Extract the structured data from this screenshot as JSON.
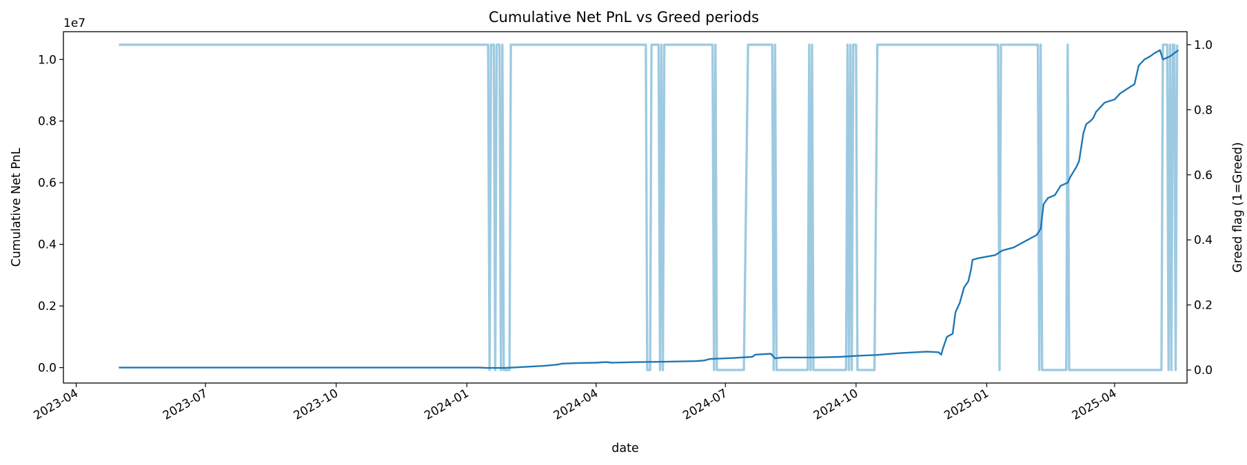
{
  "chart_data": {
    "type": "line",
    "title": "Cumulative Net PnL vs Greed periods",
    "xlabel": "date",
    "ylabel_left": "Cumulative Net PnL",
    "ylabel_right": "Greed flag (1=Greed)",
    "left_offset_label": "1e7",
    "x_range": [
      "2023-03-23",
      "2025-05-22"
    ],
    "x_ticks": [
      "2023-04",
      "2023-07",
      "2023-10",
      "2024-01",
      "2024-04",
      "2024-07",
      "2024-10",
      "2025-01",
      "2025-04"
    ],
    "x_tick_dates": [
      "2023-04-01",
      "2023-07-01",
      "2023-10-01",
      "2024-01-01",
      "2024-04-01",
      "2024-07-01",
      "2024-10-01",
      "2025-01-01",
      "2025-04-01"
    ],
    "ylim_left": [
      -0.05,
      1.09
    ],
    "yticks_left": [
      0.0,
      0.2,
      0.4,
      0.6,
      0.8,
      1.0
    ],
    "ytick_labels_left": [
      "0.0",
      "0.2",
      "0.4",
      "0.6",
      "0.8",
      "1.0"
    ],
    "ylim_right": [
      -0.04,
      1.04
    ],
    "yticks_right": [
      0.0,
      0.2,
      0.4,
      0.6,
      0.8,
      1.0
    ],
    "ytick_labels_right": [
      "0.0",
      "0.2",
      "0.4",
      "0.6",
      "0.8",
      "1.0"
    ],
    "grid": false,
    "series": [
      {
        "axis": "left",
        "unit": "1e7",
        "color": "#1f77b4",
        "points": [
          [
            "2023-05-01",
            0.0
          ],
          [
            "2023-09-01",
            0.0
          ],
          [
            "2024-01-10",
            0.0
          ],
          [
            "2024-01-15",
            -0.001
          ],
          [
            "2024-01-28",
            -0.001
          ],
          [
            "2024-02-10",
            0.002
          ],
          [
            "2024-02-25",
            0.006
          ],
          [
            "2024-03-05",
            0.01
          ],
          [
            "2024-03-08",
            0.013
          ],
          [
            "2024-03-20",
            0.015
          ],
          [
            "2024-04-01",
            0.016
          ],
          [
            "2024-04-08",
            0.018
          ],
          [
            "2024-04-12",
            0.016
          ],
          [
            "2024-05-01",
            0.018
          ],
          [
            "2024-05-20",
            0.019
          ],
          [
            "2024-06-10",
            0.021
          ],
          [
            "2024-06-16",
            0.023
          ],
          [
            "2024-06-20",
            0.028
          ],
          [
            "2024-07-05",
            0.031
          ],
          [
            "2024-07-20",
            0.035
          ],
          [
            "2024-07-22",
            0.042
          ],
          [
            "2024-08-02",
            0.045
          ],
          [
            "2024-08-05",
            0.03
          ],
          [
            "2024-08-10",
            0.033
          ],
          [
            "2024-09-01",
            0.033
          ],
          [
            "2024-09-20",
            0.035
          ],
          [
            "2024-10-01",
            0.038
          ],
          [
            "2024-10-15",
            0.041
          ],
          [
            "2024-11-01",
            0.047
          ],
          [
            "2024-11-20",
            0.052
          ],
          [
            "2024-11-28",
            0.05
          ],
          [
            "2024-11-30",
            0.042
          ],
          [
            "2024-12-01",
            0.06
          ],
          [
            "2024-12-04",
            0.1
          ],
          [
            "2024-12-08",
            0.11
          ],
          [
            "2024-12-10",
            0.18
          ],
          [
            "2024-12-13",
            0.21
          ],
          [
            "2024-12-16",
            0.26
          ],
          [
            "2024-12-19",
            0.28
          ],
          [
            "2024-12-21",
            0.32
          ],
          [
            "2024-12-22",
            0.35
          ],
          [
            "2024-12-26",
            0.355
          ],
          [
            "2025-01-01",
            0.36
          ],
          [
            "2025-01-07",
            0.365
          ],
          [
            "2025-01-12",
            0.38
          ],
          [
            "2025-01-20",
            0.39
          ],
          [
            "2025-01-28",
            0.41
          ],
          [
            "2025-02-05",
            0.43
          ],
          [
            "2025-02-08",
            0.45
          ],
          [
            "2025-02-10",
            0.53
          ],
          [
            "2025-02-13",
            0.55
          ],
          [
            "2025-02-18",
            0.56
          ],
          [
            "2025-02-22",
            0.59
          ],
          [
            "2025-02-27",
            0.6
          ],
          [
            "2025-03-01",
            0.62
          ],
          [
            "2025-03-05",
            0.65
          ],
          [
            "2025-03-07",
            0.67
          ],
          [
            "2025-03-10",
            0.76
          ],
          [
            "2025-03-12",
            0.79
          ],
          [
            "2025-03-15",
            0.8
          ],
          [
            "2025-03-17",
            0.81
          ],
          [
            "2025-03-19",
            0.83
          ],
          [
            "2025-03-25",
            0.86
          ],
          [
            "2025-04-01",
            0.87
          ],
          [
            "2025-04-05",
            0.89
          ],
          [
            "2025-04-15",
            0.92
          ],
          [
            "2025-04-18",
            0.98
          ],
          [
            "2025-04-22",
            1.0
          ],
          [
            "2025-04-26",
            1.01
          ],
          [
            "2025-04-29",
            1.02
          ],
          [
            "2025-05-03",
            1.03
          ],
          [
            "2025-05-05",
            1.0
          ],
          [
            "2025-05-10",
            1.01
          ],
          [
            "2025-05-13",
            1.02
          ],
          [
            "2025-05-16",
            1.03
          ]
        ]
      },
      {
        "name": "Greed flag",
        "axis": "right",
        "color": "#9ecae1",
        "points": [
          [
            "2023-05-01",
            1
          ],
          [
            "2024-01-16",
            1
          ],
          [
            "2024-01-17",
            0
          ],
          [
            "2024-01-18",
            1
          ],
          [
            "2024-01-20",
            1
          ],
          [
            "2024-01-21",
            0
          ],
          [
            "2024-01-22",
            1
          ],
          [
            "2024-01-24",
            1
          ],
          [
            "2024-01-25",
            0
          ],
          [
            "2024-01-26",
            1
          ],
          [
            "2024-01-27",
            0
          ],
          [
            "2024-01-31",
            0
          ],
          [
            "2024-02-01",
            1
          ],
          [
            "2024-05-06",
            1
          ],
          [
            "2024-05-07",
            0
          ],
          [
            "2024-05-09",
            0
          ],
          [
            "2024-05-10",
            1
          ],
          [
            "2024-05-15",
            1
          ],
          [
            "2024-05-16",
            0
          ],
          [
            "2024-05-17",
            1
          ],
          [
            "2024-05-18",
            0
          ],
          [
            "2024-05-19",
            1
          ],
          [
            "2024-06-22",
            1
          ],
          [
            "2024-06-23",
            0
          ],
          [
            "2024-06-24",
            1
          ],
          [
            "2024-06-25",
            0
          ],
          [
            "2024-07-14",
            0
          ],
          [
            "2024-07-17",
            1
          ],
          [
            "2024-08-03",
            1
          ],
          [
            "2024-08-04",
            0
          ],
          [
            "2024-08-05",
            1
          ],
          [
            "2024-08-06",
            0
          ],
          [
            "2024-08-28",
            0
          ],
          [
            "2024-08-29",
            1
          ],
          [
            "2024-08-30",
            0
          ],
          [
            "2024-08-31",
            1
          ],
          [
            "2024-09-01",
            0
          ],
          [
            "2024-09-24",
            0
          ],
          [
            "2024-09-25",
            1
          ],
          [
            "2024-09-26",
            0
          ],
          [
            "2024-09-27",
            1
          ],
          [
            "2024-09-28",
            0
          ],
          [
            "2024-09-29",
            1
          ],
          [
            "2024-10-01",
            1
          ],
          [
            "2024-10-02",
            0
          ],
          [
            "2024-10-14",
            0
          ],
          [
            "2024-10-16",
            1
          ],
          [
            "2025-01-09",
            1
          ],
          [
            "2025-01-10",
            0
          ],
          [
            "2025-01-11",
            1
          ],
          [
            "2025-02-06",
            1
          ],
          [
            "2025-02-07",
            0
          ],
          [
            "2025-02-08",
            1
          ],
          [
            "2025-02-09",
            0
          ],
          [
            "2025-02-26",
            0
          ],
          [
            "2025-02-27",
            1
          ],
          [
            "2025-02-28",
            0
          ],
          [
            "2025-05-04",
            0
          ],
          [
            "2025-05-05",
            1
          ],
          [
            "2025-05-08",
            1
          ],
          [
            "2025-05-09",
            0
          ],
          [
            "2025-05-10",
            1
          ],
          [
            "2025-05-11",
            0
          ],
          [
            "2025-05-12",
            1
          ],
          [
            "2025-05-13",
            1
          ],
          [
            "2025-05-14",
            0
          ],
          [
            "2025-05-15",
            1
          ]
        ]
      }
    ]
  }
}
